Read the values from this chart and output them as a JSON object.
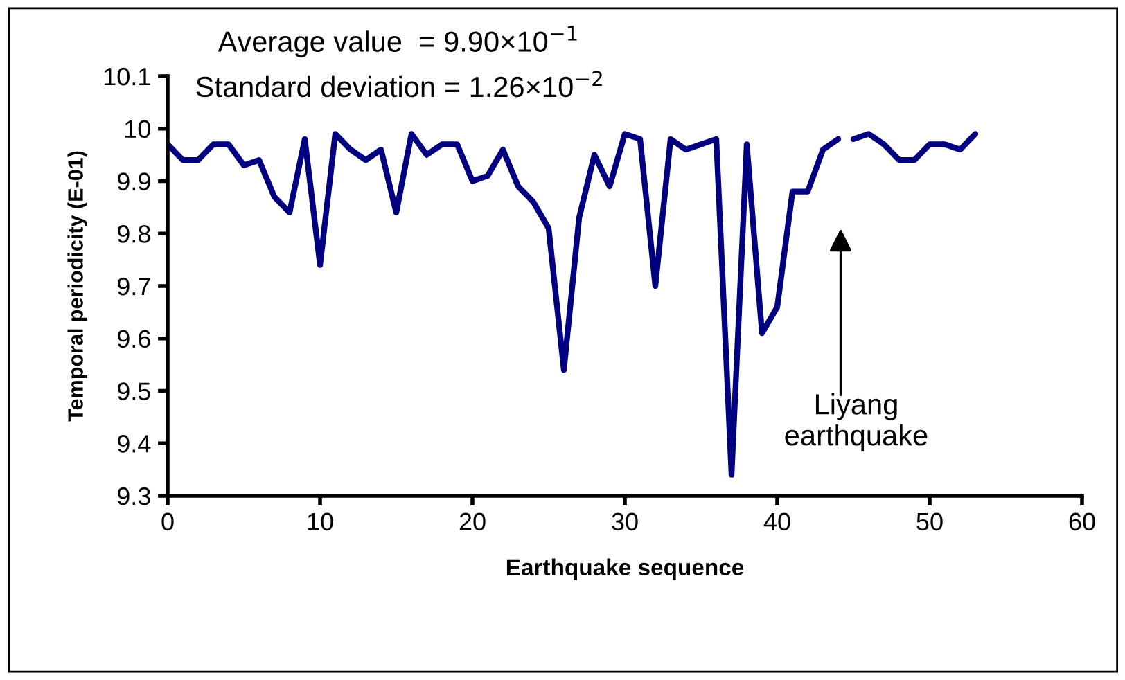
{
  "chart_data": {
    "type": "line",
    "xlabel": "Earthquake sequence",
    "ylabel": "Temporal periodicity (E-01)",
    "series": [
      {
        "color": "#000080",
        "x": [
          0,
          1,
          2,
          3,
          4,
          5,
          6,
          7,
          8,
          9,
          10,
          11,
          12,
          13,
          14,
          15,
          16,
          17,
          18,
          19,
          20,
          21,
          22,
          23,
          24,
          25,
          26,
          27,
          28,
          29,
          30,
          31,
          32,
          33,
          34,
          35,
          36,
          37,
          38,
          39,
          40,
          41,
          42,
          43,
          44
        ],
        "values": [
          9.97,
          9.94,
          9.94,
          9.97,
          9.97,
          9.93,
          9.94,
          9.87,
          9.84,
          9.98,
          9.74,
          9.99,
          9.96,
          9.94,
          9.96,
          9.84,
          9.99,
          9.95,
          9.97,
          9.97,
          9.9,
          9.91,
          9.96,
          9.89,
          9.86,
          9.81,
          9.54,
          9.83,
          9.95,
          9.89,
          9.99,
          9.98,
          9.7,
          9.98,
          9.96,
          9.97,
          9.98,
          9.34,
          9.97,
          9.61,
          9.66,
          9.88,
          9.88,
          9.96,
          9.98
        ]
      },
      {
        "color": "#000080",
        "x": [
          45,
          46,
          47,
          48,
          49,
          50,
          51,
          52,
          53
        ],
        "values": [
          9.98,
          9.99,
          9.97,
          9.94,
          9.94,
          9.97,
          9.97,
          9.96,
          9.99
        ]
      }
    ],
    "xlim": [
      0,
      60
    ],
    "xticks": [
      0,
      10,
      20,
      30,
      40,
      50,
      60
    ],
    "ylim": [
      9.3,
      10.1
    ],
    "yticks": [
      {
        "value": 9.3,
        "label": "9.3"
      },
      {
        "value": 9.4,
        "label": "9.4"
      },
      {
        "value": 9.5,
        "label": "9.5"
      },
      {
        "value": 9.6,
        "label": "9.6"
      },
      {
        "value": 9.7,
        "label": "9.7"
      },
      {
        "value": 9.8,
        "label": "9.8"
      },
      {
        "value": 9.9,
        "label": "9.9"
      },
      {
        "value": 10,
        "label": "10"
      },
      {
        "value": 10.1,
        "label": "10.1"
      }
    ],
    "grid": false,
    "legend": false,
    "marker": "none",
    "line_style": "solid",
    "annotations": [
      "Average value  = 9.90×10$^{−1}$",
      "Standard deviation = 1.26×10$^{−2}$",
      "Liyang\nearthquake"
    ]
  }
}
